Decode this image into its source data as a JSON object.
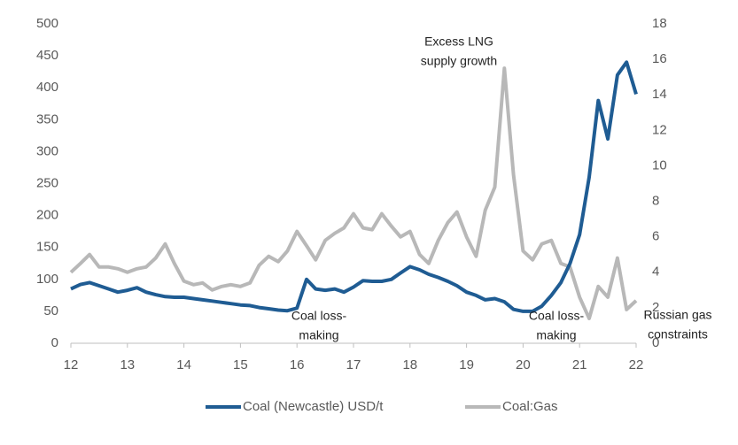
{
  "chart_data": {
    "type": "line",
    "x": [
      12,
      12.17,
      12.33,
      12.5,
      12.67,
      12.83,
      13,
      13.17,
      13.33,
      13.5,
      13.67,
      13.83,
      14,
      14.17,
      14.33,
      14.5,
      14.67,
      14.83,
      15,
      15.17,
      15.33,
      15.5,
      15.67,
      15.83,
      16,
      16.17,
      16.33,
      16.5,
      16.67,
      16.83,
      17,
      17.17,
      17.33,
      17.5,
      17.67,
      17.83,
      18,
      18.17,
      18.33,
      18.5,
      18.67,
      18.83,
      19,
      19.17,
      19.33,
      19.5,
      19.67,
      19.83,
      20,
      20.17,
      20.33,
      20.5,
      20.67,
      20.83,
      21,
      21.17,
      21.33,
      21.5,
      21.67,
      21.83,
      22
    ],
    "series": [
      {
        "name": "Coal (Newcastle) USD/t",
        "color": "#1f5c93",
        "values": [
          85,
          92,
          95,
          90,
          85,
          80,
          83,
          87,
          80,
          76,
          73,
          72,
          72,
          70,
          68,
          66,
          64,
          62,
          60,
          59,
          56,
          54,
          52,
          51,
          55,
          100,
          85,
          83,
          85,
          80,
          88,
          98,
          97,
          97,
          100,
          110,
          120,
          115,
          108,
          103,
          97,
          90,
          80,
          75,
          68,
          70,
          65,
          53,
          50,
          50,
          58,
          75,
          95,
          125,
          170,
          260,
          380,
          320,
          420,
          440,
          390
        ]
      },
      {
        "name": "Coal:Gas",
        "color": "#b8b8b8",
        "axis": "y2",
        "values": [
          4.0,
          4.5,
          5.0,
          4.3,
          4.3,
          4.2,
          4.0,
          4.2,
          4.3,
          4.8,
          5.6,
          4.5,
          3.5,
          3.3,
          3.4,
          3.0,
          3.2,
          3.3,
          3.2,
          3.4,
          4.4,
          4.9,
          4.6,
          5.2,
          6.3,
          5.5,
          4.7,
          5.8,
          6.2,
          6.5,
          7.3,
          6.5,
          6.4,
          7.3,
          6.6,
          6.0,
          6.3,
          5.0,
          4.5,
          5.8,
          6.8,
          7.4,
          6.0,
          4.9,
          7.5,
          8.8,
          15.5,
          9.5,
          5.2,
          4.7,
          5.6,
          5.8,
          4.5,
          4.3,
          2.6,
          1.4,
          3.2,
          2.6,
          4.8,
          1.9,
          2.4
        ]
      }
    ],
    "xlim": [
      12,
      22
    ],
    "xticks": [
      12,
      13,
      14,
      15,
      16,
      17,
      18,
      19,
      20,
      21,
      22
    ],
    "ylim": [
      0,
      500
    ],
    "yticks": [
      0,
      50,
      100,
      150,
      200,
      250,
      300,
      350,
      400,
      450,
      500
    ],
    "y2lim": [
      0,
      18
    ],
    "y2ticks": [
      0,
      2,
      4,
      6,
      8,
      10,
      12,
      14,
      16,
      18
    ],
    "annotations": [
      [
        "Excess LNG",
        "supply growth"
      ],
      [
        "Coal loss-",
        "making"
      ],
      [
        "Coal loss-",
        "making"
      ],
      [
        "Russian gas",
        "constraints"
      ]
    ]
  }
}
